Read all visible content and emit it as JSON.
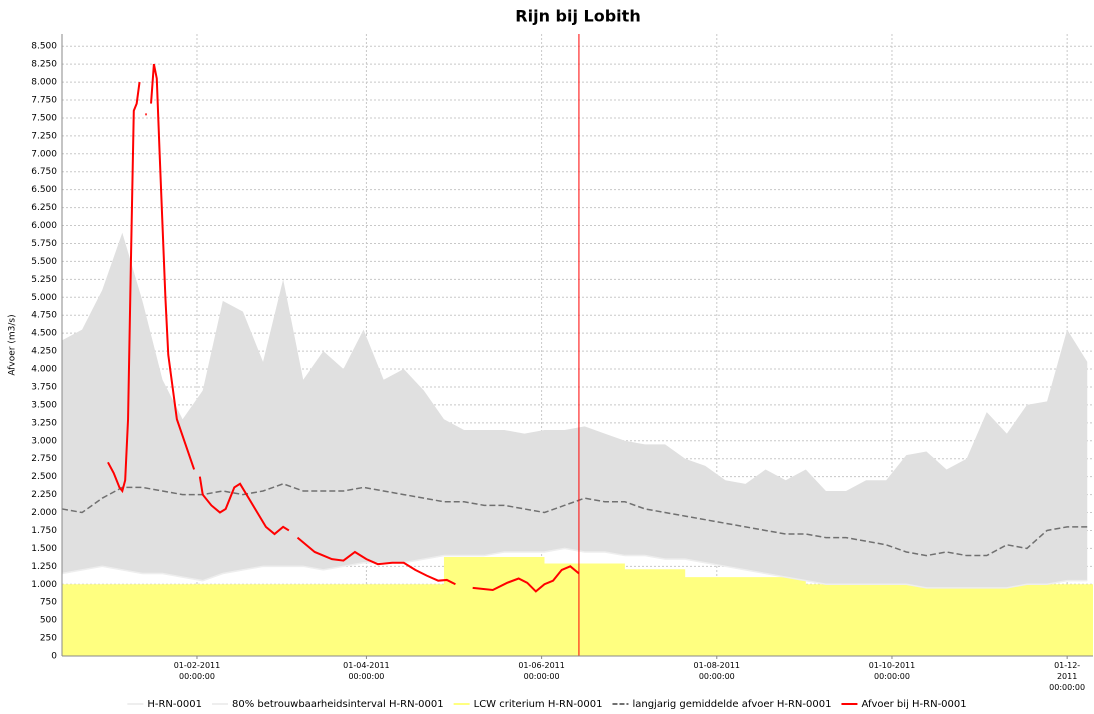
{
  "chart_data": {
    "type": "line",
    "title": "Rijn bij Lobith",
    "y_label": "Afvoer (m3/s)",
    "xlim": [
      "2010-12-16",
      "2011-12-10"
    ],
    "ylim": [
      0,
      8670
    ],
    "grid": true,
    "xticks": [
      {
        "value": "2011-02-01",
        "label": "01-02-2011\n00:00:00"
      },
      {
        "value": "2011-04-01",
        "label": "01-04-2011\n00:00:00"
      },
      {
        "value": "2011-06-01",
        "label": "01-06-2011\n00:00:00"
      },
      {
        "value": "2011-08-01",
        "label": "01-08-2011\n00:00:00"
      },
      {
        "value": "2011-10-01",
        "label": "01-10-2011\n00:00:00"
      },
      {
        "value": "2011-12-01",
        "label": "01-12-2011\n00:00:00"
      }
    ],
    "yticks": [
      0,
      250,
      500,
      750,
      {
        "value": 1000,
        "label": "1.000"
      },
      {
        "value": 1250,
        "label": "1.250"
      },
      {
        "value": 1500,
        "label": "1.500"
      },
      {
        "value": 1750,
        "label": "1.750"
      },
      {
        "value": 2000,
        "label": "2.000"
      },
      {
        "value": 2250,
        "label": "2.250"
      },
      {
        "value": 2500,
        "label": "2.500"
      },
      {
        "value": 2750,
        "label": "2.750"
      },
      {
        "value": 3000,
        "label": "3.000"
      },
      {
        "value": 3250,
        "label": "3.250"
      },
      {
        "value": 3500,
        "label": "3.500"
      },
      {
        "value": 3750,
        "label": "3.750"
      },
      {
        "value": 4000,
        "label": "4.000"
      },
      {
        "value": 4250,
        "label": "4.250"
      },
      {
        "value": 4500,
        "label": "4.500"
      },
      {
        "value": 4750,
        "label": "4.750"
      },
      {
        "value": 5000,
        "label": "5.000"
      },
      {
        "value": 5250,
        "label": "5.250"
      },
      {
        "value": 5500,
        "label": "5.500"
      },
      {
        "value": 5750,
        "label": "5.750"
      },
      {
        "value": 6000,
        "label": "6.000"
      },
      {
        "value": 6250,
        "label": "6.250"
      },
      {
        "value": 6500,
        "label": "6.500"
      },
      {
        "value": 6750,
        "label": "6.750"
      },
      {
        "value": 7000,
        "label": "7.000"
      },
      {
        "value": 7250,
        "label": "7.250"
      },
      {
        "value": 7500,
        "label": "7.500"
      },
      {
        "value": 7750,
        "label": "7.750"
      },
      {
        "value": 8000,
        "label": "8.000"
      },
      {
        "value": 8250,
        "label": "8.250"
      },
      {
        "value": 8500,
        "label": "8.500"
      }
    ],
    "marker_x": "2011-06-14",
    "marker_color": "#ff0000",
    "x": [
      "2010-12-16",
      "2010-12-23",
      "2010-12-30",
      "2011-01-06",
      "2011-01-13",
      "2011-01-20",
      "2011-01-27",
      "2011-02-03",
      "2011-02-10",
      "2011-02-17",
      "2011-02-24",
      "2011-03-03",
      "2011-03-10",
      "2011-03-17",
      "2011-03-24",
      "2011-03-31",
      "2011-04-07",
      "2011-04-14",
      "2011-04-21",
      "2011-04-28",
      "2011-05-05",
      "2011-05-12",
      "2011-05-19",
      "2011-05-26",
      "2011-06-02",
      "2011-06-09",
      "2011-06-16",
      "2011-06-23",
      "2011-06-30",
      "2011-07-07",
      "2011-07-14",
      "2011-07-21",
      "2011-07-28",
      "2011-08-04",
      "2011-08-11",
      "2011-08-18",
      "2011-08-25",
      "2011-09-01",
      "2011-09-08",
      "2011-09-15",
      "2011-09-22",
      "2011-09-29",
      "2011-10-06",
      "2011-10-13",
      "2011-10-20",
      "2011-10-27",
      "2011-11-03",
      "2011-11-10",
      "2011-11-17",
      "2011-11-24",
      "2011-12-01",
      "2011-12-08"
    ],
    "series": [
      {
        "name": "H-RN-0001",
        "color": "#eeeeee",
        "style": "line",
        "values": [
          1150,
          1200,
          1250,
          1200,
          1150,
          1150,
          1100,
          1050,
          1150,
          1200,
          1250,
          1250,
          1250,
          1200,
          1250,
          1300,
          1300,
          1300,
          1350,
          1400,
          1400,
          1400,
          1450,
          1450,
          1450,
          1500,
          1450,
          1450,
          1400,
          1400,
          1350,
          1350,
          1300,
          1250,
          1200,
          1150,
          1100,
          1050,
          1000,
          1000,
          1000,
          1000,
          1000,
          950,
          950,
          950,
          950,
          950,
          1000,
          1000,
          1050,
          1050
        ]
      },
      {
        "name": "80% betrouwbaarheidsinterval H-RN-0001",
        "color": "#e0e0e0",
        "style": "band",
        "values": [
          4400,
          4550,
          5100,
          5900,
          4950,
          3850,
          3300,
          3700,
          4950,
          4800,
          4100,
          5250,
          3850,
          4250,
          4000,
          4550,
          3850,
          4000,
          3700,
          3300,
          3150,
          3150,
          3150,
          3100,
          3150,
          3150,
          3200,
          3100,
          3000,
          2950,
          2950,
          2750,
          2650,
          2450,
          2400,
          2600,
          2450,
          2600,
          2300,
          2300,
          2450,
          2450,
          2800,
          2850,
          2600,
          2750,
          3400,
          3100,
          3500,
          3550,
          4550,
          4100
        ]
      },
      {
        "name": "LCW criterium H-RN-0001",
        "color": "#ffff80",
        "style": "step-area",
        "values": [
          1000,
          1000,
          1000,
          1000,
          1000,
          1000,
          1000,
          1000,
          1000,
          1000,
          1000,
          1000,
          1000,
          1000,
          1000,
          1000,
          1000,
          1000,
          1000,
          1380,
          1380,
          1380,
          1380,
          1380,
          1290,
          1290,
          1290,
          1290,
          1210,
          1210,
          1210,
          1100,
          1100,
          1100,
          1100,
          1100,
          1100,
          1000,
          1000,
          1000,
          1000,
          1000,
          1000,
          1000,
          1000,
          1000,
          1000,
          1000,
          1000,
          1000,
          1000,
          1000
        ]
      },
      {
        "name": "langjarig gemiddelde afvoer H-RN-0001",
        "color": "#707070",
        "style": "dashed-line",
        "values": [
          2050,
          2000,
          2200,
          2350,
          2350,
          2300,
          2250,
          2250,
          2300,
          2250,
          2300,
          2400,
          2300,
          2300,
          2300,
          2350,
          2300,
          2250,
          2200,
          2150,
          2150,
          2100,
          2100,
          2050,
          2000,
          2100,
          2200,
          2150,
          2150,
          2050,
          2000,
          1950,
          1900,
          1850,
          1800,
          1750,
          1700,
          1700,
          1650,
          1650,
          1600,
          1550,
          1450,
          1400,
          1450,
          1400,
          1400,
          1550,
          1500,
          1750,
          1800,
          1800
        ]
      },
      {
        "name": "Afvoer bij H-RN-0001",
        "color": "#ff0000",
        "style": "line",
        "x": [
          "2011-01-01",
          "2011-01-03",
          "2011-01-05",
          "2011-01-06",
          "2011-01-07",
          "2011-01-08",
          "2011-01-09",
          "2011-01-10",
          "2011-01-11",
          "2011-01-12",
          "2011-01-13",
          "2011-01-14",
          "2011-01-15",
          "2011-01-16",
          "2011-01-17",
          "2011-01-18",
          "2011-01-19",
          "2011-01-20",
          "2011-01-21",
          "2011-01-22",
          "2011-01-23",
          "2011-01-25",
          "2011-01-28",
          "2011-01-31",
          "2011-02-01",
          "2011-02-02",
          "2011-02-03",
          "2011-02-06",
          "2011-02-09",
          "2011-02-11",
          "2011-02-14",
          "2011-02-16",
          "2011-02-19",
          "2011-02-22",
          "2011-02-25",
          "2011-02-28",
          "2011-03-03",
          "2011-03-05",
          "2011-03-06",
          "2011-03-08",
          "2011-03-14",
          "2011-03-20",
          "2011-03-24",
          "2011-03-28",
          "2011-04-01",
          "2011-04-05",
          "2011-04-10",
          "2011-04-14",
          "2011-04-18",
          "2011-04-22",
          "2011-04-26",
          "2011-04-29",
          "2011-05-02",
          "2011-05-05",
          "2011-05-08",
          "2011-05-15",
          "2011-05-20",
          "2011-05-24",
          "2011-05-27",
          "2011-05-30",
          "2011-06-02",
          "2011-06-05",
          "2011-06-08",
          "2011-06-11",
          "2011-06-14"
        ],
        "values": [
          2700,
          2550,
          2350,
          2300,
          2450,
          3300,
          5500,
          7600,
          7700,
          8000,
          null,
          7550,
          null,
          7700,
          8250,
          8050,
          7000,
          6000,
          5000,
          4200,
          3900,
          3300,
          2950,
          2600,
          null,
          2500,
          2250,
          2100,
          2000,
          2050,
          2350,
          2400,
          2200,
          2000,
          1800,
          1700,
          1800,
          1750,
          null,
          1650,
          1450,
          1350,
          1330,
          1450,
          1350,
          1280,
          1300,
          1300,
          1200,
          1120,
          1050,
          1060,
          1000,
          null,
          950,
          920,
          1020,
          1080,
          1020,
          900,
          1000,
          1050,
          1200,
          1250,
          1150
        ]
      }
    ]
  }
}
